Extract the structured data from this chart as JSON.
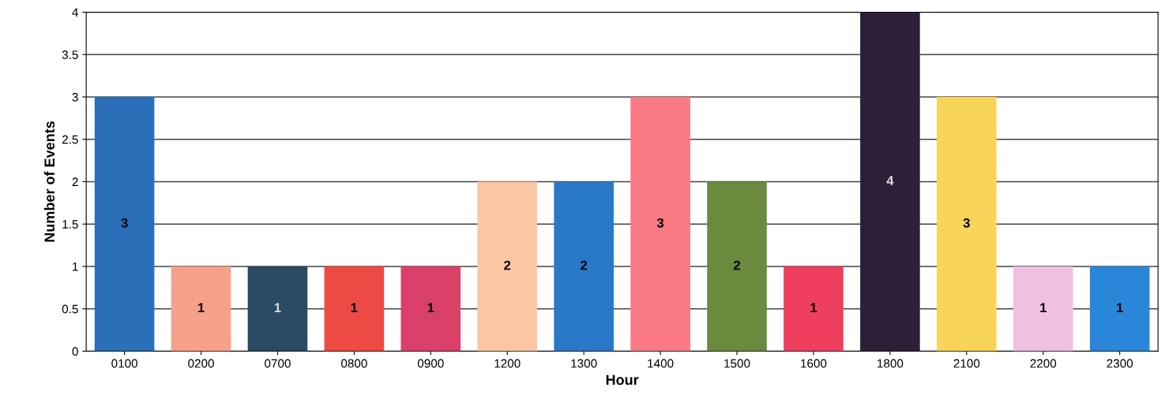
{
  "chart_data": {
    "type": "bar",
    "xlabel": "Hour",
    "ylabel": "Number of Events",
    "categories": [
      "0100",
      "0200",
      "0700",
      "0800",
      "0900",
      "1200",
      "1300",
      "1400",
      "1500",
      "1600",
      "1800",
      "2100",
      "2200",
      "2300"
    ],
    "values": [
      3,
      1,
      1,
      1,
      1,
      2,
      2,
      3,
      2,
      1,
      4,
      3,
      1,
      1
    ],
    "colors": [
      "#2a6fb8",
      "#f7a08a",
      "#2b4a63",
      "#ee4a44",
      "#d9406a",
      "#fbc6a4",
      "#2a78c8",
      "#fa7a84",
      "#6a8a3e",
      "#ee3f5e",
      "#2e1f38",
      "#f8d458",
      "#f0c0e0",
      "#2a86d8"
    ],
    "ylim": [
      0,
      4
    ],
    "yticks": [
      0,
      0.5,
      1,
      1.5,
      2,
      2.5,
      3,
      3.5,
      4
    ],
    "grid": "y",
    "data_labels": true,
    "legend": false
  }
}
